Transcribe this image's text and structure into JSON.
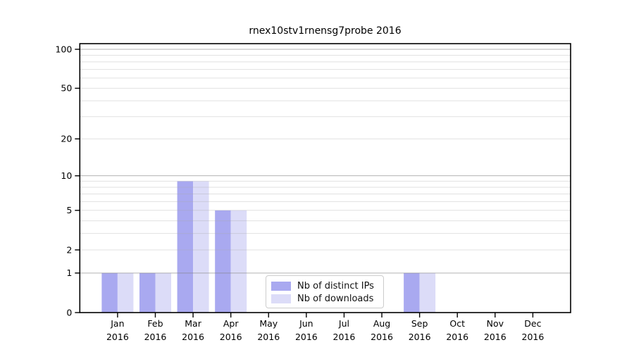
{
  "title": "rnex10stv1rnensg7probe 2016",
  "chart_data": {
    "type": "bar",
    "title": "rnex10stv1rnensg7probe 2016",
    "categories": [
      "Jan",
      "Feb",
      "Mar",
      "Apr",
      "May",
      "Jun",
      "Jul",
      "Aug",
      "Sep",
      "Oct",
      "Nov",
      "Dec"
    ],
    "category_year": "2016",
    "series": [
      {
        "name": "Nb of distinct IPs",
        "color": "#a9a9f0",
        "values": [
          1,
          1,
          9,
          5,
          0,
          0,
          0,
          0,
          1,
          0,
          0,
          0
        ]
      },
      {
        "name": "Nb of downloads",
        "color": "#dcdcf8",
        "values": [
          1,
          1,
          9,
          5,
          0,
          0,
          0,
          0,
          1,
          0,
          0,
          0
        ]
      }
    ],
    "xlabel": "",
    "ylabel": "",
    "yscale": "log1p",
    "ylim": [
      0,
      110.5
    ],
    "yticks": [
      0,
      1,
      2,
      5,
      10,
      20,
      50,
      100
    ],
    "major_gridlines": [
      1,
      10,
      100
    ],
    "minor_gridlines": [
      2,
      3,
      4,
      5,
      6,
      7,
      8,
      9,
      20,
      30,
      40,
      50,
      60,
      70,
      80,
      90
    ],
    "grid": true,
    "legend_position": "inside bottom-center"
  },
  "colors": {
    "axis": "#000000",
    "major_grid": "#808080",
    "minor_grid": "#aaaaaa",
    "tick_label": "#000000",
    "background": "#ffffff"
  }
}
